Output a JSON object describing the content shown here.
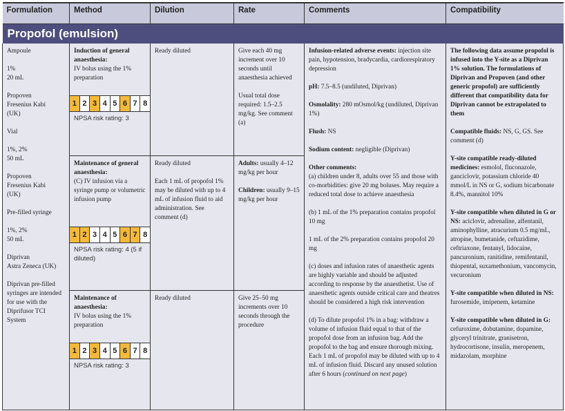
{
  "headers": [
    "Formulation",
    "Method",
    "Dilution",
    "Rate",
    "Comments",
    "Compatibility"
  ],
  "title": "Propofol (emulsion)",
  "formulation": [
    "Ampoule",
    "1%\n20 mL",
    "Propoven\nFresenius Kabi\n(UK)",
    "Vial",
    "1%, 2%\n50 mL",
    "Propoven\nFresenius Kabi\n(UK)",
    "Pre-filled syringe",
    "1%, 2%\n50 mL",
    "Diprivan\nAstra Zeneca (UK)",
    "Diprivan pre-filled syringes are intended for use with the Diprifusor TCI System"
  ],
  "rows": [
    {
      "method_bold": "Induction of general anaesthesia:",
      "method": "IV bolus using the 1% preparation",
      "ratings_highlighted": [
        1,
        3,
        6
      ],
      "npsa": "NPSA risk rating: 3",
      "dilution": [
        "Ready diluted"
      ],
      "rate": [
        {
          "label": "",
          "text": "Give each 40 mg increment over 10 seconds until anaesthesia achieved"
        },
        {
          "label": "",
          "text": "Usual total dose required: 1.5–2.5 mg/kg. See comment (a)"
        }
      ]
    },
    {
      "method_bold": "Maintenance of general anaesthesia:",
      "method": "(C) IV infusion via a syringe pump or volumetric infusion pump",
      "ratings_highlighted": [
        1,
        2,
        6,
        7
      ],
      "npsa": "NPSA risk rating: 4 (5 if diluted)",
      "dilution": [
        "Ready diluted",
        "Each 1 mL of propofol 1% may be diluted with up to 4 mL of infusion fluid to aid administration. See comment (d)"
      ],
      "rate": [
        {
          "label": "Adults:",
          "text": " usually 4–12 mg/kg per hour"
        },
        {
          "label": "Children:",
          "text": " usually 9–15 mg/kg per hour"
        }
      ]
    },
    {
      "method_bold": "Maintenance of anaesthesia:",
      "method": "IV bolus using the 1% preparation",
      "ratings_highlighted": [
        1,
        3,
        6
      ],
      "npsa": "NPSA risk rating: 3",
      "dilution": [
        "Ready diluted"
      ],
      "rate": [
        {
          "label": "",
          "text": "Give 25–50 mg increments over 10 seconds through the procedure"
        }
      ]
    }
  ],
  "rating_scale": [
    "1",
    "2",
    "3",
    "4",
    "5",
    "6",
    "7",
    "8"
  ],
  "rating_color": "#f4b93a",
  "comments": [
    {
      "label": "Infusion-related adverse events:",
      "text": " injection site pain, hypotension, bradycardia, cardiorespiratory depression"
    },
    {
      "label": "pH:",
      "text": " 7.5–8.5 (undiluted, Diprivan)"
    },
    {
      "label": "Osmolality:",
      "text": " 280 mOsmol/kg (undiluted, Diprivan 1%)"
    },
    {
      "label": "Flush:",
      "text": " NS"
    },
    {
      "label": "Sodium content:",
      "text": " negligible (Diprivan)"
    },
    {
      "label": "Other comments:",
      "text": "\n(a) children under 8, adults over 55 and those with co-morbidities: give 20 mg boluses. May require a reduced total dose to achieve anaesthesia"
    },
    {
      "label": "",
      "text": "(b) 1 mL of the 1% preparation contains propofol 10 mg"
    },
    {
      "label": "",
      "text": "1 mL of the 2% preparation contains propofol 20 mg"
    },
    {
      "label": "",
      "text": "(c) doses and infusion rates of anaesthetic agents are highly variable and should be adjusted according to response by the anaesthetist. Use of anaesthetic agents outside critical care and theatres should be considered a high risk intervention"
    },
    {
      "label": "",
      "text": "(d) To dilute propofol 1% in a bag: withdraw a volume of infusion fluid equal to that of the propofol dose from an infusion bag. Add the propofol to the bag and ensure thorough mixing. Each 1 mL of propofol may be diluted with up to 4 mL of infusion fluid. Discard any unused solution after 6 hours ",
      "italic": "continued on next page"
    }
  ],
  "compatibility": [
    {
      "label": "The following data assume propofol is infused into the Y-site as a Diprivan 1% solution. The formulations of Diprivan and Propoven (and other generic propofol) are sufficiently different that compatibility data for Diprivan cannot be extrapolated to them",
      "text": ""
    },
    {
      "label": "Compatible fluids:",
      "text": " NS, G, GS. See comment (d)"
    },
    {
      "label": "Y-site compatible ready-diluted medicines:",
      "text": " esmolol, fluconazole, ganciclovir, potassium chloride 40 mmol/L in NS or G, sodium bicarbonate 8.4%, mannitol 10%"
    },
    {
      "label": "Y-site compatible when diluted in G or NS:",
      "text": " aciclovir, adrenaline, alfentanil, aminophylline, atracurium 0.5 mg/mL, atropine, bumetanide, ceftazidime, ceftriaxone, fentanyl, lidocaine, pancuronium, ranitidine, remifentanil, thiopental, suxamethonium, vancomycin, vecuronium"
    },
    {
      "label": "Y-site compatible when diluted in NS:",
      "text": " furosemide, imipenem, ketamine"
    },
    {
      "label": "Y-site compatible when diluted in G:",
      "text": " cefuroxime, dobutamine, dopamine, glyceryl trinitrate, granisetron, hydrocortisone, insulin, meropenem, midazolam, morphine"
    }
  ]
}
